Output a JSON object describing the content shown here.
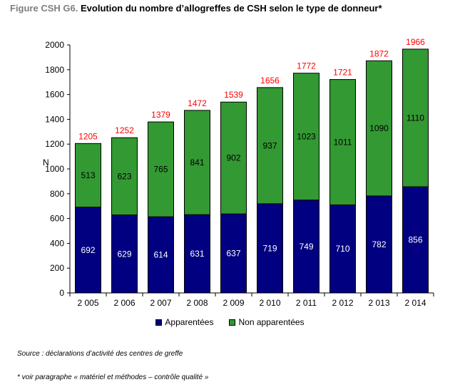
{
  "title_prefix": "Figure CSH G6.",
  "title_main": "Evolution du nombre d’allogreffes de CSH selon le type de donneur*",
  "source": "Source : déclarations d’activité des centres de greffe",
  "footnote": "* voir paragraphe « matériel et méthodes – contrôle qualité »",
  "colors": {
    "apparentees": "#000080",
    "non_apparentees": "#339933",
    "total_label": "#ff0000"
  },
  "chart_data": {
    "type": "bar",
    "stacked": true,
    "categories": [
      "2 005",
      "2 006",
      "2 007",
      "2 008",
      "2 009",
      "2 010",
      "2 011",
      "2 012",
      "2 013",
      "2 014"
    ],
    "series": [
      {
        "name": "Apparentées",
        "values": [
          692,
          629,
          614,
          631,
          637,
          719,
          749,
          710,
          782,
          856
        ]
      },
      {
        "name": "Non apparentées",
        "values": [
          513,
          623,
          765,
          841,
          902,
          937,
          1023,
          1011,
          1090,
          1110
        ]
      }
    ],
    "totals": [
      1205,
      1252,
      1379,
      1472,
      1539,
      1656,
      1772,
      1721,
      1872,
      1966
    ],
    "ylabel": "N",
    "ylim": [
      0,
      2000
    ],
    "yticks": [
      0,
      200,
      400,
      600,
      800,
      1000,
      1200,
      1400,
      1600,
      1800,
      2000
    ],
    "grid": false,
    "legend_position": "bottom"
  }
}
